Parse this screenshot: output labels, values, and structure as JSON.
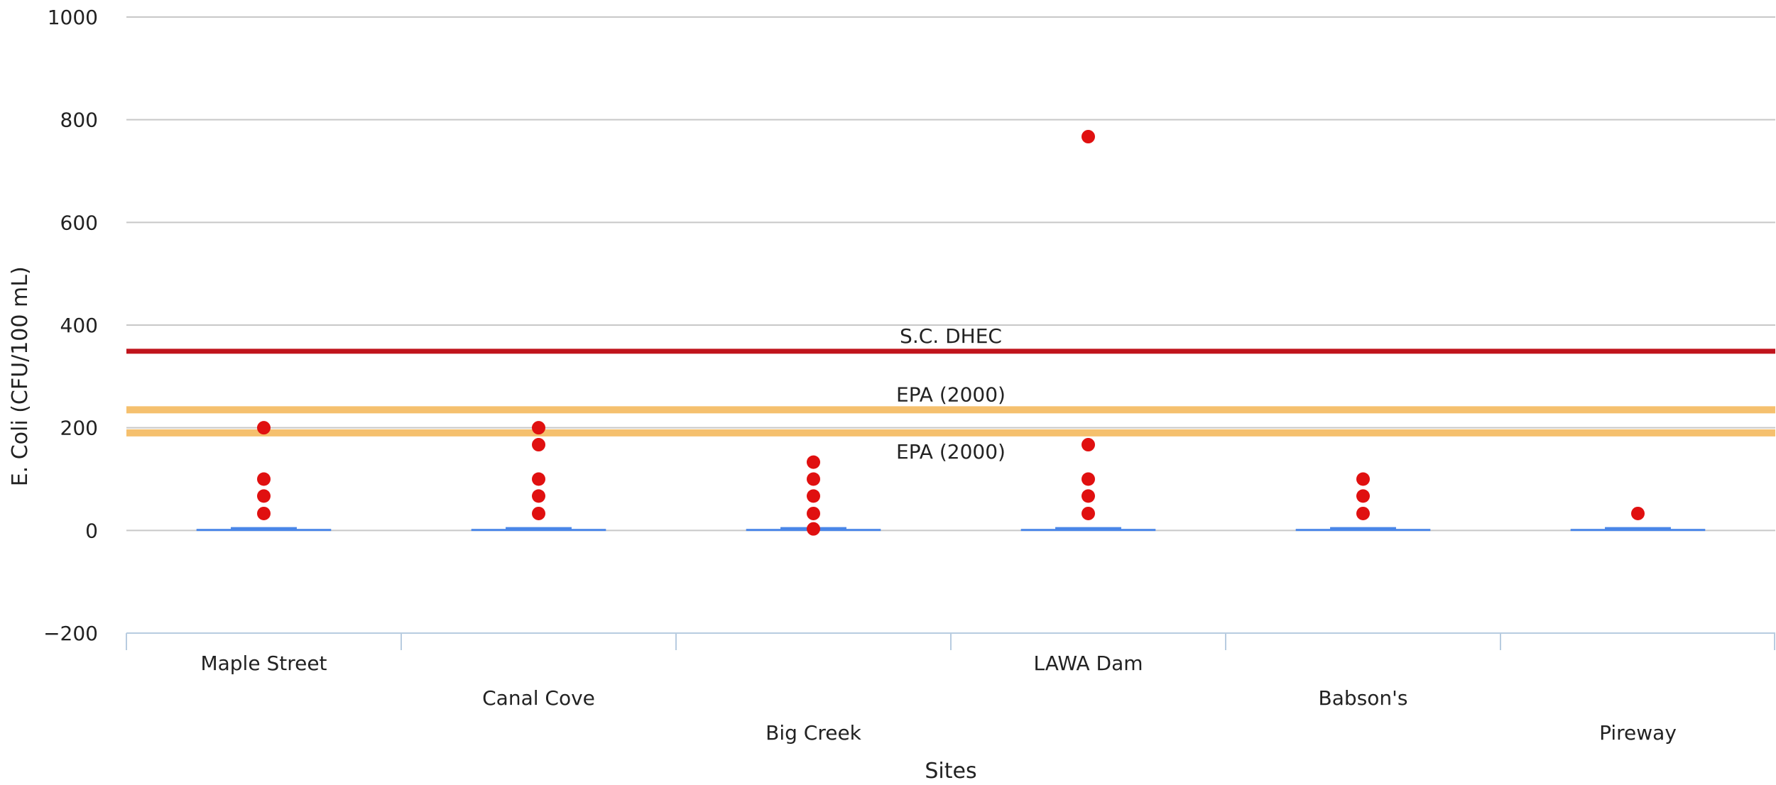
{
  "chart_data": {
    "type": "boxplot",
    "title": "",
    "xlabel": "Sites",
    "ylabel": "E. Coli (CFU/100 mL)",
    "ylim": [
      -200,
      1000
    ],
    "yticks": [
      -200,
      0,
      200,
      400,
      600,
      800,
      1000
    ],
    "grid": true,
    "categories": [
      "Maple Street",
      "Canal Cove",
      "Big Creek",
      "LAWA Dam",
      "Babson's",
      "Pireway"
    ],
    "boxes": [
      {
        "category": "Maple Street",
        "low": 0,
        "q1": 0,
        "median": 3,
        "q3": 3,
        "high": 3
      },
      {
        "category": "Canal Cove",
        "low": 0,
        "q1": 0,
        "median": 3,
        "q3": 3,
        "high": 3
      },
      {
        "category": "Big Creek",
        "low": 0,
        "q1": 0,
        "median": 3,
        "q3": 3,
        "high": 3
      },
      {
        "category": "LAWA Dam",
        "low": 0,
        "q1": 0,
        "median": 3,
        "q3": 3,
        "high": 3
      },
      {
        "category": "Babson's",
        "low": 0,
        "q1": 0,
        "median": 3,
        "q3": 3,
        "high": 3
      },
      {
        "category": "Pireway",
        "low": 0,
        "q1": 0,
        "median": 3,
        "q3": 3,
        "high": 3
      }
    ],
    "outliers": [
      {
        "category": "Maple Street",
        "values": [
          200,
          100,
          67,
          33
        ]
      },
      {
        "category": "Canal Cove",
        "values": [
          200,
          167,
          100,
          67,
          33
        ]
      },
      {
        "category": "Big Creek",
        "values": [
          133,
          100,
          67,
          33,
          3
        ]
      },
      {
        "category": "LAWA Dam",
        "values": [
          767,
          167,
          100,
          67,
          33
        ]
      },
      {
        "category": "Babson's",
        "values": [
          100,
          67,
          33
        ]
      },
      {
        "category": "Pireway",
        "values": [
          33
        ]
      }
    ],
    "reference_lines": [
      {
        "label": "S.C. DHEC",
        "value": 349,
        "color": "#c0141c"
      },
      {
        "label": "EPA (2000)",
        "value": 235,
        "color": "#f5c06e"
      },
      {
        "label": "EPA (2000)",
        "value": 190,
        "color": "#f5c06e"
      }
    ],
    "colors": {
      "box": "#4a86e8",
      "outlier": "#e01010",
      "grid": "#c8c8c8",
      "axis": "#b8cce0"
    }
  }
}
